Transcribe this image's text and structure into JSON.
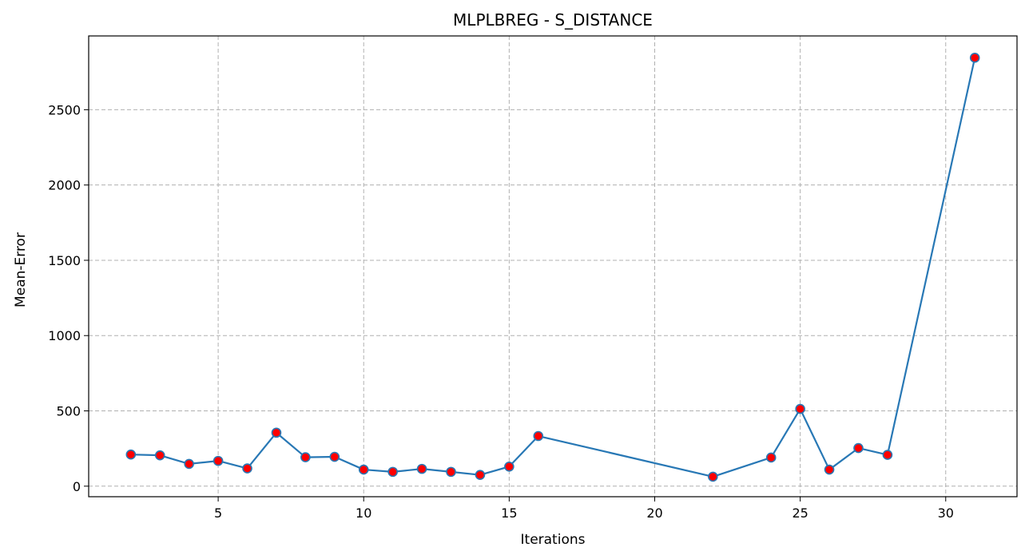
{
  "chart_data": {
    "type": "line",
    "title": "MLPLBREG - S_DISTANCE",
    "xlabel": "Iterations",
    "ylabel": "Mean-Error",
    "xlim": [
      0.55,
      32.45
    ],
    "ylim": [
      -70,
      2990
    ],
    "xticks": [
      5,
      10,
      15,
      20,
      25,
      30
    ],
    "yticks": [
      0,
      500,
      1000,
      1500,
      2000,
      2500
    ],
    "grid": true,
    "line_color": "#2878b5",
    "marker_face_color": "#ff0000",
    "marker_edge_color": "#2878b5",
    "series": [
      {
        "x": [
          2,
          3,
          4,
          5,
          6,
          7,
          8,
          9,
          10,
          11,
          12,
          13,
          14,
          15,
          16,
          22,
          24,
          25,
          26,
          27,
          28,
          31
        ],
        "values": [
          210,
          205,
          148,
          168,
          118,
          355,
          192,
          195,
          110,
          95,
          115,
          95,
          75,
          130,
          333,
          63,
          190,
          513,
          110,
          253,
          208,
          2845
        ]
      }
    ]
  }
}
